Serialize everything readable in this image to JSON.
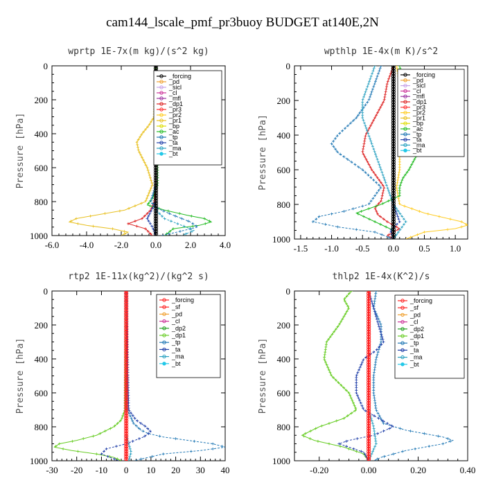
{
  "suptitle": "cam144_lscale_pmf_pr3buoy  BUDGET at140E,2N",
  "colors": {
    "forcing": "#000000",
    "pd": "#f0a030",
    "sicl": "#c6a0e8",
    "cl": "#cc3399",
    "mfl": "#9b30a0",
    "dp1": "#dd2222",
    "pr3": "#ff3030",
    "pr2": "#ffcc22",
    "pr1": "#e8c020",
    "bp": "#dddd00",
    "ac": "#22bb22",
    "tp": "#1f77b4",
    "ta": "#1f3ea8",
    "ma": "#28a0c0",
    "bt": "#22c8e8",
    "sf": "#ff2020",
    "dp2": "#22a022",
    "dp1g": "#66cc22"
  },
  "chart_data": [
    {
      "type": "line",
      "title": "wprtp  1E-7x(m kg)/(s^2 kg)",
      "ylabel": "Pressure [hPa]",
      "xlim": [
        -6,
        4
      ],
      "ylim": [
        0,
        1000
      ],
      "xticks": [
        -6,
        -4,
        -2,
        0,
        2,
        4
      ],
      "xtick_labels": [
        "-6.0",
        "-4.0",
        "-2.0",
        "0.0",
        "2.0",
        "4.0"
      ],
      "yticks": [
        0,
        200,
        400,
        600,
        800,
        1000
      ],
      "ytick_labels": [
        "0",
        "200",
        "400",
        "600",
        "800",
        "1000"
      ],
      "legend_position": "top-right",
      "series": [
        {
          "name": "_forcing",
          "p": [
            0,
            100,
            200,
            300,
            400,
            500,
            600,
            700,
            800,
            900,
            1000
          ],
          "x": [
            0,
            0,
            0,
            0,
            0,
            0,
            0,
            0,
            0,
            0,
            0
          ]
        },
        {
          "name": "_pd",
          "p": [
            0,
            1000
          ],
          "x": [
            0,
            0
          ]
        },
        {
          "name": "_sicl",
          "p": [
            0,
            1000
          ],
          "x": [
            0,
            0
          ]
        },
        {
          "name": "_cl",
          "p": [
            0,
            1000
          ],
          "x": [
            0,
            0
          ]
        },
        {
          "name": "_mfl",
          "p": [
            0,
            1000
          ],
          "x": [
            0,
            0
          ]
        },
        {
          "name": "_dp1",
          "p": [
            0,
            700,
            800,
            850,
            900,
            930,
            960,
            1000
          ],
          "x": [
            0,
            0,
            -0.1,
            -0.3,
            -0.8,
            -1.6,
            -0.6,
            -0.2
          ]
        },
        {
          "name": "_pr3",
          "p": [
            0,
            1000
          ],
          "x": [
            0,
            0
          ]
        },
        {
          "name": "_pr2",
          "p": [
            0,
            1000
          ],
          "x": [
            0,
            0
          ]
        },
        {
          "name": "_pr1",
          "p": [
            0,
            300,
            350,
            400,
            450,
            500,
            600,
            700,
            800,
            850,
            880,
            900,
            920,
            940,
            960,
            980,
            1000
          ],
          "x": [
            0,
            -0.1,
            -0.4,
            -0.8,
            -1.1,
            -1.0,
            -0.5,
            -0.2,
            -0.6,
            -1.8,
            -3.5,
            -4.6,
            -5.0,
            -4.0,
            -2.5,
            -1.6,
            -2.0
          ]
        },
        {
          "name": "_bp",
          "p": [
            0,
            1000
          ],
          "x": [
            0,
            0
          ]
        },
        {
          "name": "_ac",
          "p": [
            0,
            500,
            700,
            780,
            820,
            850,
            880,
            900,
            920,
            940,
            960,
            1000
          ],
          "x": [
            0,
            0.1,
            0.1,
            -0.2,
            -0.5,
            0.5,
            1.8,
            2.8,
            3.2,
            2.5,
            1.0,
            0.5
          ]
        },
        {
          "name": "_tp",
          "p": [
            0,
            700,
            800,
            840,
            880,
            920,
            950,
            980,
            1000
          ],
          "x": [
            0,
            0,
            -0.3,
            0.1,
            1.0,
            2.0,
            2.4,
            1.2,
            0.3
          ]
        },
        {
          "name": "_ta",
          "p": [
            0,
            800,
            900,
            950,
            1000
          ],
          "x": [
            0,
            0,
            -0.5,
            -0.2,
            0
          ]
        },
        {
          "name": "_ma",
          "p": [
            0,
            850,
            900,
            940,
            970,
            1000
          ],
          "x": [
            0,
            0,
            0.5,
            1.5,
            2.2,
            1.5
          ]
        },
        {
          "name": "_bt",
          "p": [
            0,
            1000
          ],
          "x": [
            0,
            0
          ]
        }
      ]
    },
    {
      "type": "line",
      "title": "wpthlp  1E-4x(m K)/s^2",
      "ylabel": "Pressure [hPa]",
      "xlim": [
        -1.6,
        1.2
      ],
      "ylim": [
        0,
        1000
      ],
      "xticks": [
        -1.5,
        -1.0,
        -0.5,
        0.0,
        0.5,
        1.0
      ],
      "xtick_labels": [
        "-1.5",
        "-1.0",
        "-0.5",
        "0.0",
        "0.5",
        "1.0"
      ],
      "yticks": [
        0,
        200,
        400,
        600,
        800,
        1000
      ],
      "ytick_labels": [
        "0",
        "200",
        "400",
        "600",
        "800",
        "1000"
      ],
      "legend_position": "top-right",
      "series": [
        {
          "name": "_forcing",
          "p": [
            0,
            1000
          ],
          "x": [
            0,
            0
          ]
        },
        {
          "name": "_pd",
          "p": [
            0,
            1000
          ],
          "x": [
            0,
            0
          ]
        },
        {
          "name": "_sicl",
          "p": [
            0,
            1000
          ],
          "x": [
            0,
            0
          ]
        },
        {
          "name": "_cl",
          "p": [
            0,
            1000
          ],
          "x": [
            0,
            0
          ]
        },
        {
          "name": "_mfl",
          "p": [
            0,
            1000
          ],
          "x": [
            0,
            0
          ]
        },
        {
          "name": "_dp1",
          "p": [
            0,
            50,
            100,
            200,
            300,
            400,
            500,
            600,
            700,
            780,
            820,
            860,
            900,
            940,
            980,
            1000
          ],
          "x": [
            0,
            -0.05,
            -0.1,
            -0.15,
            -0.3,
            -0.45,
            -0.5,
            -0.35,
            -0.15,
            -0.2,
            -0.3,
            -0.25,
            -0.1,
            0.1,
            -0.1,
            0
          ]
        },
        {
          "name": "_pr3",
          "p": [
            0,
            1000
          ],
          "x": [
            0,
            0
          ]
        },
        {
          "name": "_pr2",
          "p": [
            0,
            100,
            200,
            300,
            400,
            500,
            600,
            700,
            800,
            850,
            900,
            920,
            940,
            960,
            1000
          ],
          "x": [
            0.05,
            0.1,
            0.1,
            0.15,
            0.15,
            0.1,
            0.1,
            0.05,
            0.1,
            0.5,
            1.1,
            1.2,
            1.0,
            0.5,
            0.2
          ]
        },
        {
          "name": "_pr1",
          "p": [
            0,
            1000
          ],
          "x": [
            0,
            0
          ]
        },
        {
          "name": "_bp",
          "p": [
            0,
            1000
          ],
          "x": [
            0,
            0
          ]
        },
        {
          "name": "_ac",
          "p": [
            0,
            100,
            200,
            300,
            350,
            380,
            420,
            500,
            600,
            650,
            700,
            750,
            800,
            850,
            900,
            950,
            1000
          ],
          "x": [
            0.1,
            0.15,
            0.25,
            0.4,
            0.55,
            0.65,
            0.6,
            0.4,
            0.25,
            0.15,
            0.1,
            0.1,
            -0.2,
            -0.6,
            -0.3,
            0,
            0
          ]
        },
        {
          "name": "_tp",
          "p": [
            0,
            100,
            200,
            300,
            400,
            450,
            500,
            600,
            700,
            800,
            840,
            870,
            900,
            930,
            960,
            1000
          ],
          "x": [
            -0.2,
            -0.3,
            -0.4,
            -0.6,
            -0.9,
            -1.0,
            -0.9,
            -0.5,
            -0.2,
            -0.4,
            -0.8,
            -1.2,
            -1.3,
            -0.9,
            -0.3,
            0
          ]
        },
        {
          "name": "_ta",
          "p": [
            0,
            800,
            900,
            950,
            1000
          ],
          "x": [
            0,
            0,
            0.1,
            -0.05,
            0
          ]
        },
        {
          "name": "_ma",
          "p": [
            0,
            100,
            200,
            300,
            400,
            500,
            600,
            700,
            800,
            850,
            900,
            950,
            1000
          ],
          "x": [
            -0.3,
            -0.4,
            -0.5,
            -0.5,
            -0.4,
            -0.3,
            -0.2,
            -0.1,
            0,
            0.1,
            0.2,
            0.1,
            0
          ]
        },
        {
          "name": "_bt",
          "p": [
            0,
            1000
          ],
          "x": [
            0,
            0
          ]
        }
      ]
    },
    {
      "type": "line",
      "title": "rtp2  1E-11x(kg^2)/(kg^2 s)",
      "ylabel": "Pressure [hPa]",
      "xlim": [
        -30,
        40
      ],
      "ylim": [
        0,
        1000
      ],
      "xticks": [
        -30,
        -20,
        -10,
        0,
        10,
        20,
        30,
        40
      ],
      "xtick_labels": [
        "-30",
        "-20",
        "-10",
        "0",
        "10",
        "20",
        "30",
        "40"
      ],
      "yticks": [
        0,
        200,
        400,
        600,
        800,
        1000
      ],
      "ytick_labels": [
        "0",
        "200",
        "400",
        "600",
        "800",
        "1000"
      ],
      "legend_position": "top-right",
      "series": [
        {
          "name": "_forcing",
          "p": [
            0,
            100,
            200,
            300,
            400,
            500,
            600,
            700,
            800,
            900,
            1000
          ],
          "x": [
            0,
            0,
            0,
            0,
            0,
            0,
            0,
            0,
            0,
            0,
            0
          ]
        },
        {
          "name": "_sf",
          "p": [
            0,
            1000
          ],
          "x": [
            0,
            0
          ]
        },
        {
          "name": "_pd",
          "p": [
            0,
            1000
          ],
          "x": [
            0,
            0
          ]
        },
        {
          "name": "_cl",
          "p": [
            0,
            1000
          ],
          "x": [
            0,
            0
          ]
        },
        {
          "name": "_dp2",
          "p": [
            0,
            1000
          ],
          "x": [
            0,
            0
          ]
        },
        {
          "name": "_dp1",
          "p": [
            0,
            700,
            760,
            800,
            850,
            880,
            900,
            920,
            940,
            960,
            980,
            1000
          ],
          "x": [
            0,
            -0.5,
            -2,
            -5,
            -12,
            -20,
            -27,
            -29,
            -22,
            -12,
            -5,
            -2
          ]
        },
        {
          "name": "_tp",
          "p": [
            0,
            700,
            780,
            820,
            840,
            860,
            880,
            900,
            920,
            940,
            960,
            1000
          ],
          "x": [
            0,
            0.5,
            3,
            6,
            9,
            15,
            25,
            35,
            40,
            30,
            15,
            3
          ]
        },
        {
          "name": "_ta",
          "p": [
            0,
            700,
            760,
            800,
            830,
            860,
            900,
            930,
            960,
            1000
          ],
          "x": [
            0,
            1,
            4,
            8,
            10,
            7,
            0,
            -8,
            -10,
            -3
          ]
        },
        {
          "name": "_ma",
          "p": [
            0,
            850,
            900,
            950,
            1000
          ],
          "x": [
            0,
            0,
            1,
            2,
            1
          ]
        },
        {
          "name": "_bt",
          "p": [
            0,
            1000
          ],
          "x": [
            0,
            0
          ]
        }
      ]
    },
    {
      "type": "line",
      "title": "thlp2  1E-4x(K^2)/s",
      "ylabel": "Pressure [hPa]",
      "xlim": [
        -0.3,
        0.4
      ],
      "ylim": [
        0,
        1000
      ],
      "xticks": [
        -0.2,
        0.0,
        0.2,
        0.4
      ],
      "xtick_labels": [
        "-0.20",
        "0.00",
        "0.20",
        "0.40"
      ],
      "yticks": [
        0,
        200,
        400,
        600,
        800,
        1000
      ],
      "ytick_labels": [
        "0",
        "200",
        "400",
        "600",
        "800",
        "1000"
      ],
      "legend_position": "top-right",
      "series": [
        {
          "name": "_forcing",
          "p": [
            0,
            100,
            200,
            300,
            400,
            500,
            600,
            700,
            800,
            900,
            1000
          ],
          "x": [
            0,
            0,
            0,
            0,
            0,
            0,
            0,
            0,
            0,
            0,
            0
          ]
        },
        {
          "name": "_sf",
          "p": [
            0,
            1000
          ],
          "x": [
            0,
            0
          ]
        },
        {
          "name": "_pd",
          "p": [
            0,
            1000
          ],
          "x": [
            0,
            0
          ]
        },
        {
          "name": "_cl",
          "p": [
            0,
            1000
          ],
          "x": [
            0,
            0
          ]
        },
        {
          "name": "_dp2",
          "p": [
            0,
            1000
          ],
          "x": [
            0,
            0
          ]
        },
        {
          "name": "_dp1",
          "p": [
            0,
            50,
            100,
            200,
            300,
            400,
            500,
            600,
            700,
            750,
            800,
            850,
            880,
            920,
            960,
            1000
          ],
          "x": [
            -0.07,
            -0.1,
            -0.08,
            -0.12,
            -0.17,
            -0.18,
            -0.15,
            -0.08,
            -0.05,
            -0.1,
            -0.2,
            -0.27,
            -0.22,
            -0.1,
            -0.02,
            0
          ]
        },
        {
          "name": "_tp",
          "p": [
            0,
            100,
            200,
            300,
            400,
            500,
            600,
            700,
            780,
            820,
            860,
            880,
            900,
            940,
            980,
            1000
          ],
          "x": [
            0.03,
            0.02,
            0.05,
            0.05,
            0.03,
            0.02,
            0.02,
            0.03,
            0.06,
            0.15,
            0.3,
            0.34,
            0.3,
            0.15,
            0.05,
            0.02
          ]
        },
        {
          "name": "_ta",
          "p": [
            0,
            200,
            300,
            350,
            400,
            500,
            600,
            700,
            800,
            850,
            880,
            900,
            950,
            1000
          ],
          "x": [
            0,
            0.04,
            0.06,
            0.03,
            -0.02,
            -0.05,
            -0.05,
            -0.02,
            0.1,
            0.02,
            -0.08,
            -0.12,
            -0.02,
            0
          ]
        },
        {
          "name": "_ma",
          "p": [
            0,
            700,
            800,
            900,
            1000
          ],
          "x": [
            0,
            0,
            0.02,
            0.03,
            0
          ]
        },
        {
          "name": "_bt",
          "p": [
            0,
            1000
          ],
          "x": [
            0,
            0
          ]
        }
      ]
    }
  ]
}
